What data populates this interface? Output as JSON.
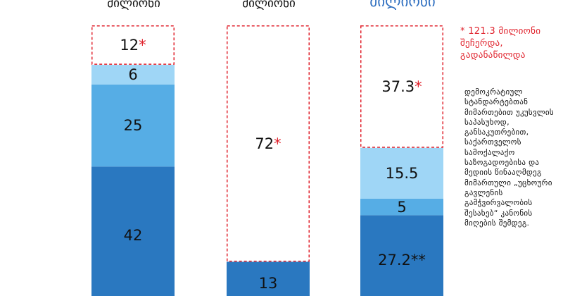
{
  "colors": {
    "dark": "#2a78c0",
    "mid": "#56ade5",
    "light": "#9fd6f6",
    "dashed": "#e0222c",
    "star": "#e0222c",
    "note": "#e0222c",
    "header_blue": "#2f6fc0"
  },
  "chart_data": [
    {
      "type": "bar",
      "header": "მილიონი",
      "segments": [
        {
          "value": 42,
          "label": "42",
          "style": "dark"
        },
        {
          "value": 25,
          "label": "25",
          "style": "mid"
        },
        {
          "value": 6,
          "label": "6",
          "style": "light"
        },
        {
          "value": 12,
          "label": "12",
          "marker": "*",
          "style": "dashed"
        }
      ]
    },
    {
      "type": "bar",
      "header": "მილიონი",
      "segments": [
        {
          "value": 13,
          "label": "13",
          "style": "dark"
        },
        {
          "value": 72,
          "label": "72",
          "marker": "*",
          "style": "dashed"
        }
      ]
    },
    {
      "type": "bar",
      "header": "მილიონი",
      "segments": [
        {
          "value": 27.2,
          "label": "27.2",
          "marker": "**",
          "style": "dark"
        },
        {
          "value": 5,
          "label": "5",
          "style": "mid"
        },
        {
          "value": 15.5,
          "label": "15.5",
          "style": "light"
        },
        {
          "value": 37.3,
          "label": "37.3",
          "marker": "*",
          "style": "dashed"
        }
      ]
    }
  ],
  "note": "* 121.3 მილიონი შეჩერდა, გადანაწილდა",
  "description": "დემოკრატიულ სტანდარტებთან მიმართებით უკუსვლის საპასუხოდ, განსაკუთრებით, საქართველოს სამოქალაქო საზოგადოებისა და მედიის წინააღმდეგ მიმართული „უცხოური გავლენის გამჭვირვალობის შესახებ“ კანონის მიღების შემდეგ."
}
